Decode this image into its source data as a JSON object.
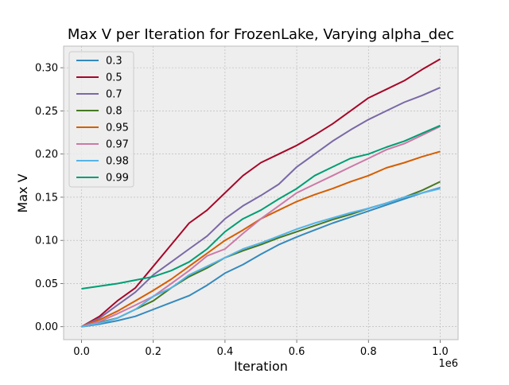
{
  "chart_data": {
    "type": "line",
    "title": "Max V per Iteration for FrozenLake, Varying alpha_dec",
    "xlabel": "Iteration",
    "ylabel": "Max V",
    "x_offset_label": "1e6",
    "xlim": [
      -0.05,
      1.05
    ],
    "ylim": [
      -0.015,
      0.325
    ],
    "x_ticks": [
      0.0,
      0.2,
      0.4,
      0.6,
      0.8,
      1.0
    ],
    "x_tick_labels": [
      "0.0",
      "0.2",
      "0.4",
      "0.6",
      "0.8",
      "1.0"
    ],
    "y_ticks": [
      0.0,
      0.05,
      0.1,
      0.15,
      0.2,
      0.25,
      0.3
    ],
    "y_tick_labels": [
      "0.00",
      "0.05",
      "0.10",
      "0.15",
      "0.20",
      "0.25",
      "0.30"
    ],
    "grid": true,
    "legend_position": "upper-left",
    "x": [
      0.0,
      0.05,
      0.1,
      0.15,
      0.2,
      0.25,
      0.3,
      0.35,
      0.4,
      0.45,
      0.5,
      0.55,
      0.6,
      0.65,
      0.7,
      0.75,
      0.8,
      0.85,
      0.9,
      0.95,
      1.0
    ],
    "series": [
      {
        "name": "0.3",
        "color": "#348ABD",
        "values": [
          0.0,
          0.003,
          0.007,
          0.012,
          0.02,
          0.028,
          0.036,
          0.048,
          0.062,
          0.072,
          0.084,
          0.095,
          0.104,
          0.112,
          0.12,
          0.127,
          0.134,
          0.141,
          0.148,
          0.155,
          0.161
        ]
      },
      {
        "name": "0.5",
        "color": "#A60628",
        "values": [
          0.0,
          0.012,
          0.03,
          0.045,
          0.07,
          0.095,
          0.12,
          0.135,
          0.155,
          0.175,
          0.19,
          0.2,
          0.21,
          0.222,
          0.235,
          0.25,
          0.265,
          0.275,
          0.285,
          0.298,
          0.31
        ]
      },
      {
        "name": "0.7",
        "color": "#7A68A6",
        "values": [
          0.0,
          0.01,
          0.025,
          0.04,
          0.06,
          0.075,
          0.09,
          0.105,
          0.125,
          0.14,
          0.152,
          0.165,
          0.185,
          0.2,
          0.215,
          0.228,
          0.24,
          0.25,
          0.26,
          0.268,
          0.277
        ]
      },
      {
        "name": "0.8",
        "color": "#467821",
        "values": [
          0.0,
          0.005,
          0.01,
          0.02,
          0.03,
          0.045,
          0.058,
          0.068,
          0.08,
          0.088,
          0.095,
          0.103,
          0.11,
          0.117,
          0.124,
          0.13,
          0.137,
          0.143,
          0.15,
          0.158,
          0.168
        ]
      },
      {
        "name": "0.95",
        "color": "#D55E00",
        "values": [
          0.0,
          0.008,
          0.018,
          0.03,
          0.042,
          0.055,
          0.07,
          0.085,
          0.1,
          0.112,
          0.125,
          0.135,
          0.145,
          0.153,
          0.16,
          0.168,
          0.175,
          0.184,
          0.19,
          0.197,
          0.203
        ]
      },
      {
        "name": "0.97",
        "color": "#CC79A7",
        "values": [
          0.0,
          0.006,
          0.015,
          0.025,
          0.035,
          0.05,
          0.065,
          0.082,
          0.09,
          0.108,
          0.125,
          0.14,
          0.155,
          0.165,
          0.175,
          0.185,
          0.195,
          0.205,
          0.212,
          0.222,
          0.232
        ]
      },
      {
        "name": "0.98",
        "color": "#56B4E9",
        "values": [
          0.0,
          0.004,
          0.01,
          0.02,
          0.035,
          0.045,
          0.06,
          0.07,
          0.08,
          0.09,
          0.097,
          0.105,
          0.113,
          0.12,
          0.126,
          0.132,
          0.137,
          0.143,
          0.15,
          0.155,
          0.16
        ]
      },
      {
        "name": "0.99",
        "color": "#009E73",
        "values": [
          0.044,
          0.047,
          0.05,
          0.054,
          0.058,
          0.065,
          0.075,
          0.09,
          0.11,
          0.125,
          0.135,
          0.148,
          0.16,
          0.175,
          0.185,
          0.195,
          0.2,
          0.208,
          0.215,
          0.224,
          0.233
        ]
      }
    ]
  }
}
